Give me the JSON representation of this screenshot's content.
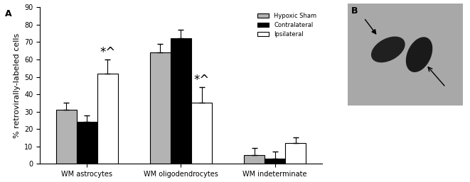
{
  "chart_data": {
    "type": "bar",
    "panel_label": "A",
    "y_label": "% retrovirally-labeled cells",
    "categories": [
      "WM astrocytes",
      "WM oligodendrocytes",
      "WM indeterminate"
    ],
    "series": [
      {
        "name": "Hypoxic Sham",
        "color": "#b3b3b3",
        "values": [
          31,
          64,
          5
        ],
        "errors": [
          4,
          5,
          4
        ]
      },
      {
        "name": "Contralateral",
        "color": "#000000",
        "values": [
          24,
          72,
          3
        ],
        "errors": [
          4,
          5,
          4
        ]
      },
      {
        "name": "Ipsilateral",
        "color": "#ffffff",
        "values": [
          52,
          35,
          12
        ],
        "errors": [
          8,
          9,
          3
        ]
      }
    ],
    "annotations": [
      {
        "text": "*^",
        "category": "WM astrocytes",
        "series": "Ipsilateral"
      },
      {
        "text": "*^",
        "category": "WM oligodendrocytes",
        "series": "Ipsilateral"
      }
    ],
    "ylim": [
      0,
      90
    ],
    "yticks": [
      0,
      10,
      20,
      30,
      40,
      50,
      60,
      70,
      80,
      90
    ],
    "legend": "upper right",
    "grid": false
  },
  "image_panel": {
    "label": "B"
  }
}
